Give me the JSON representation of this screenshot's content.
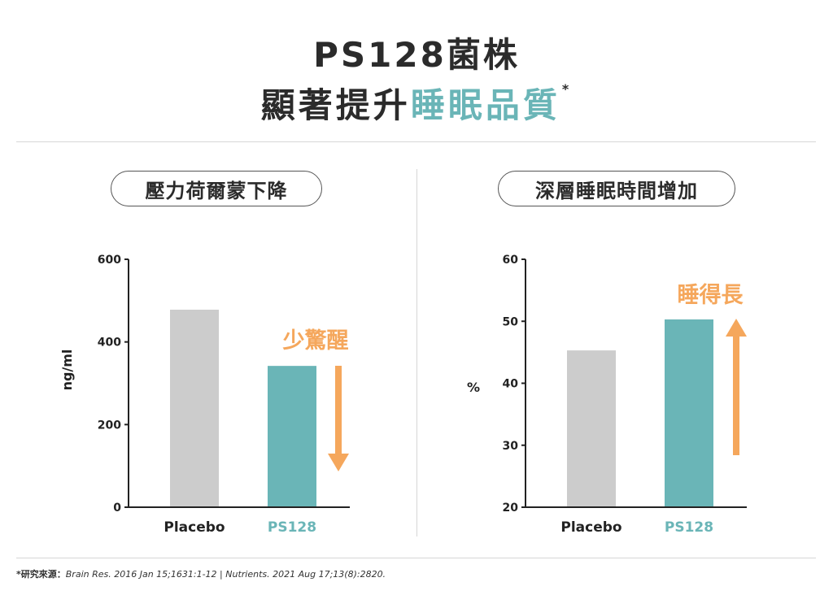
{
  "header": {
    "title_line1": "PS128菌株",
    "title_line2_prefix": "顯著提升",
    "title_line2_highlight": "睡眠品質",
    "title_mark": "*"
  },
  "source": {
    "label": "*研究來源：",
    "refs": "Brain Res. 2016 Jan 15;1631:1-12   |   Nutrients. 2021 Aug 17;13(8):2820."
  },
  "colors": {
    "placebo": "#cccccc",
    "ps128": "#6ab5b7",
    "arrow": "#f5a75c",
    "axis": "#222222",
    "highlight": "#6ab5b7"
  },
  "chart_data": [
    {
      "type": "bar",
      "title": "壓力荷爾蒙下降",
      "categories": [
        "Placebo",
        "PS128"
      ],
      "values": [
        478,
        342
      ],
      "ylabel": "ng/ml",
      "ylim": [
        0,
        600
      ],
      "yticks": [
        "0",
        "200",
        "400",
        "600"
      ],
      "annotation": "少驚醒",
      "arrow_direction": "down"
    },
    {
      "type": "bar",
      "title": "深層睡眠時間增加",
      "categories": [
        "Placebo",
        "PS128"
      ],
      "values": [
        45.3,
        50.3
      ],
      "ylabel": "%",
      "ylim": [
        20,
        60
      ],
      "yticks": [
        "20",
        "30",
        "40",
        "50",
        "60"
      ],
      "annotation": "睡得長",
      "arrow_direction": "up"
    }
  ]
}
